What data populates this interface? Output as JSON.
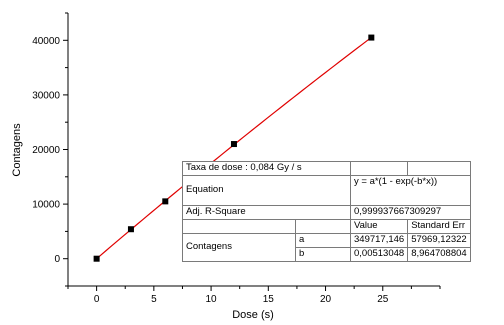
{
  "chart_data": {
    "type": "scatter",
    "xlabel": "Dose (s)",
    "ylabel": "Contagens",
    "xlim": [
      -2.5,
      30
    ],
    "ylim": [
      -5000,
      45000
    ],
    "xticks": [
      0,
      5,
      10,
      15,
      20,
      25
    ],
    "yticks": [
      0,
      10000,
      20000,
      30000,
      40000
    ],
    "grid": false,
    "series": [
      {
        "marker": "square",
        "color": "#000000",
        "points": [
          {
            "x": 0,
            "y": 0
          },
          {
            "x": 3,
            "y": 5400
          },
          {
            "x": 6,
            "y": 10500
          },
          {
            "x": 12,
            "y": 21000
          },
          {
            "x": 24,
            "y": 40500
          }
        ]
      }
    ],
    "fit": {
      "color": "#e00000",
      "x_range": [
        0,
        24
      ],
      "a": 349717.146,
      "b": 0.00513048
    },
    "fit_table": {
      "title": "Taxa de dose : 0,084 Gy / s",
      "equation_label": "Equation",
      "equation": "y = a*(1 - exp(-b*x))",
      "adj_r2_label": "Adj. R-Square",
      "adj_r2": "0,999937667309297",
      "value_header": "Value",
      "stderr_header": "Standard Err",
      "group_label": "Contagens",
      "rows": [
        {
          "param": "a",
          "value": "349717,146",
          "stderr": "57969,12322"
        },
        {
          "param": "b",
          "value": "0,00513048",
          "stderr": "8,964708804"
        }
      ]
    }
  }
}
